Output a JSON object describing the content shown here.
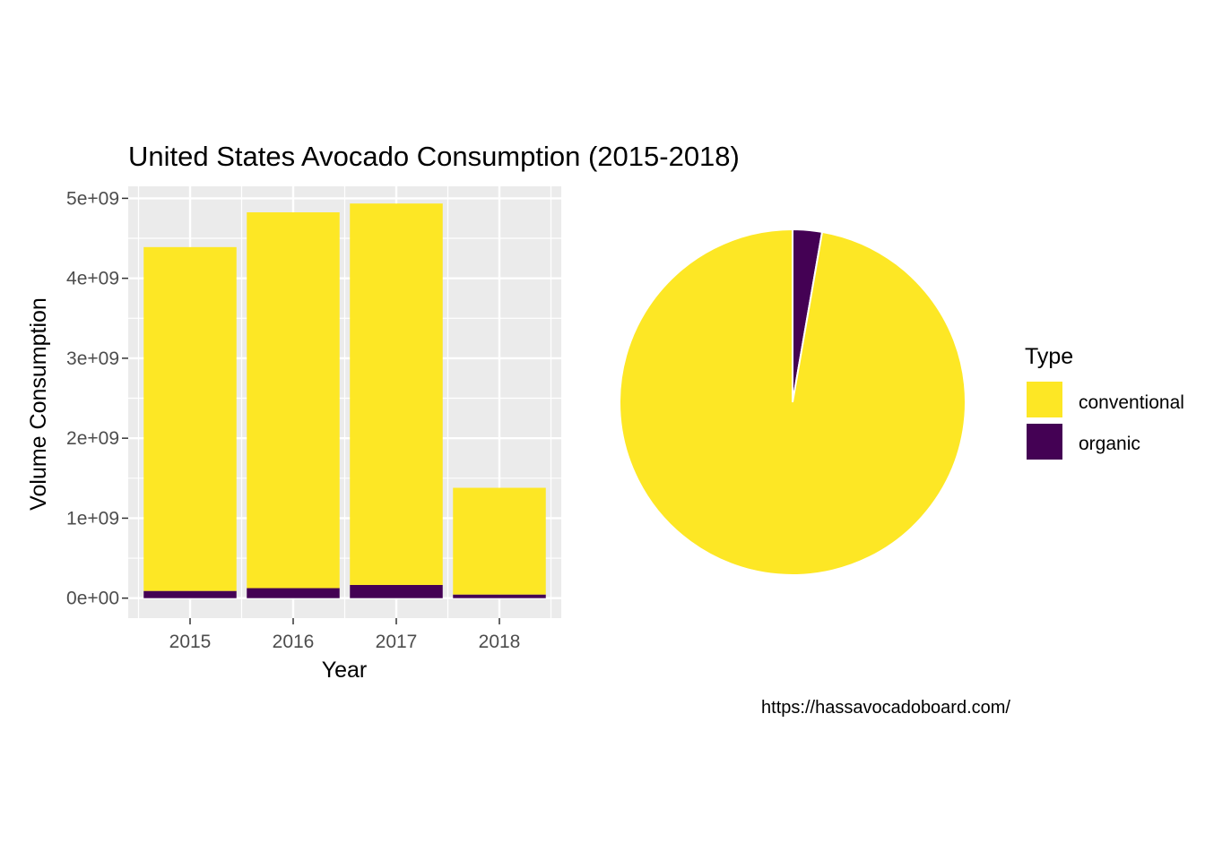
{
  "chart_data": [
    {
      "type": "bar",
      "stacked": true,
      "title": "United States Avocado Consumption (2015-2018)",
      "xlabel": "Year",
      "ylabel": "Volume Consumption",
      "categories": [
        "2015",
        "2016",
        "2017",
        "2018"
      ],
      "series": [
        {
          "name": "organic",
          "color": "#440154",
          "values": [
            90000000,
            125000000,
            165000000,
            45000000
          ]
        },
        {
          "name": "conventional",
          "color": "#FDE725",
          "values": [
            4300000000,
            4700000000,
            4770000000,
            1335000000
          ]
        }
      ],
      "ylim": [
        -250000000,
        5150000000
      ],
      "yticks": [
        0,
        1000000000,
        2000000000,
        3000000000,
        4000000000,
        5000000000
      ],
      "ytick_labels": [
        "0e+00",
        "1e+09",
        "2e+09",
        "3e+09",
        "4e+09",
        "5e+09"
      ],
      "grid": true,
      "panel_background": "#EBEBEB"
    },
    {
      "type": "pie",
      "labels": [
        "organic",
        "conventional"
      ],
      "values": [
        425000000,
        15105000000
      ],
      "colors": [
        "#440154",
        "#FDE725"
      ]
    }
  ],
  "legend": {
    "title": "Type",
    "placement": "right",
    "items": [
      {
        "label": "conventional",
        "color": "#FDE725"
      },
      {
        "label": "organic",
        "color": "#440154"
      }
    ]
  },
  "caption": "https://hassavocadoboard.com/"
}
